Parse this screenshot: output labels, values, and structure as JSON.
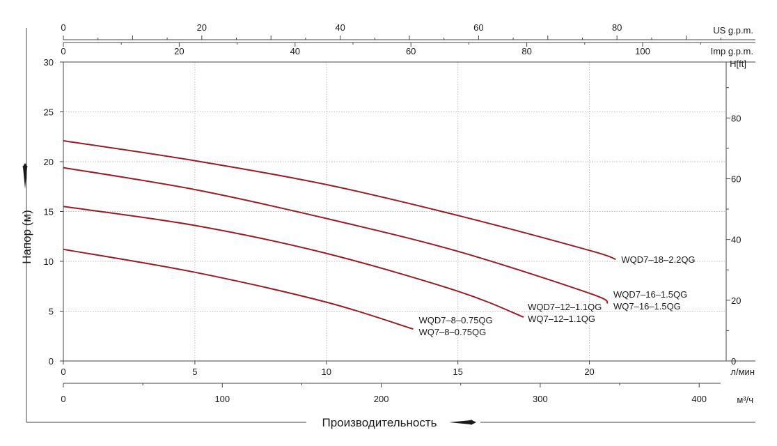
{
  "chart_data": {
    "type": "line",
    "xlabel": "Производительность",
    "ylabel": "Напор (м)",
    "x_unit_label": "л/мин",
    "y_right_unit_label": "H[ft]",
    "xlim": [
      0,
      25.2
    ],
    "ylim": [
      0,
      30
    ],
    "x_ticks": [
      0,
      5,
      10,
      15,
      20
    ],
    "y_ticks": [
      0,
      5,
      10,
      15,
      20,
      25,
      30
    ],
    "y_right_ticks": [
      0,
      20,
      40,
      60,
      80
    ],
    "m3h_ticks": [
      0,
      100,
      200,
      300,
      400
    ],
    "m3h_unit_label": "м³/ч",
    "imp_ticks": [
      0,
      20,
      40,
      60,
      80,
      100
    ],
    "imp_unit_label": "Imp g.p.m.",
    "us_ticks": [
      0,
      20,
      40,
      60,
      80
    ],
    "us_unit_label": "US g.p.m.",
    "grid": true,
    "series": [
      {
        "labels": [
          "WQD7–18–2.2QG"
        ],
        "x": [
          0,
          5,
          10,
          15,
          20,
          21
        ],
        "y": [
          22.1,
          20.1,
          17.7,
          14.6,
          11.1,
          10.2
        ]
      },
      {
        "labels": [
          "WQD7–16–1.5QG",
          "WQ7–16–1.5QG"
        ],
        "x": [
          0,
          5,
          10,
          15,
          20,
          20.7
        ],
        "y": [
          19.4,
          17.2,
          14.3,
          11.0,
          6.8,
          5.8
        ]
      },
      {
        "labels": [
          "WQD7–12–1.1QG",
          "WQ7–12–1.1QG"
        ],
        "x": [
          0,
          5,
          10,
          15,
          17.5
        ],
        "y": [
          15.5,
          13.6,
          10.8,
          7.0,
          4.4
        ]
      },
      {
        "labels": [
          "WQD7–8–0.75QG",
          "WQ7–8–0.75QG"
        ],
        "x": [
          0,
          5,
          10,
          13.3
        ],
        "y": [
          11.2,
          8.9,
          5.9,
          3.2
        ]
      }
    ],
    "colors": {
      "curve": "#9b1b24",
      "grid": "#bdbdbd",
      "text": "#1a1a1a"
    }
  }
}
